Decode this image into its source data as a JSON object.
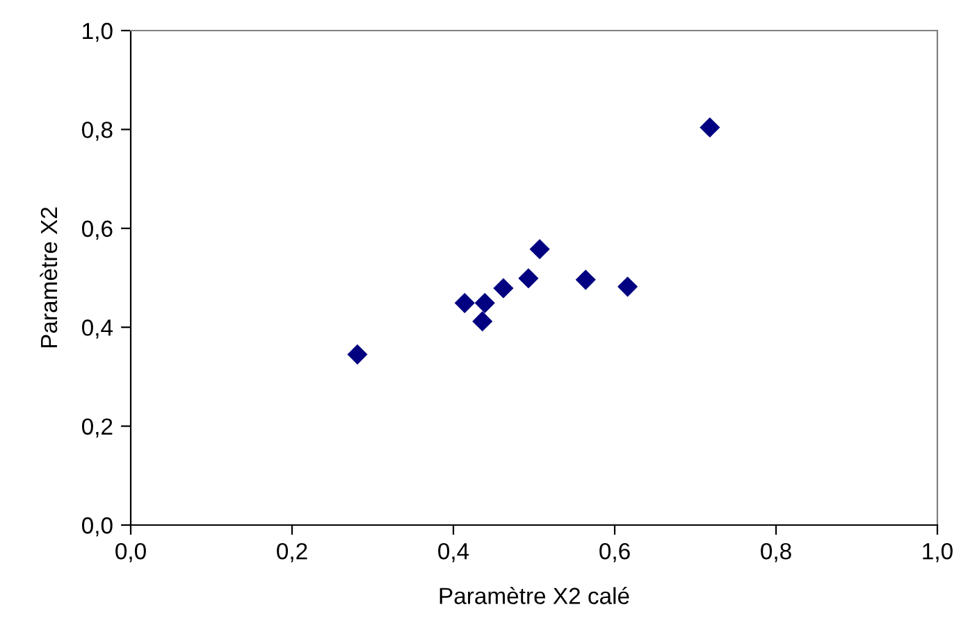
{
  "chart_data": {
    "type": "scatter",
    "xlabel": "Paramètre X2 calé",
    "ylabel": "Paramètre X2",
    "x": [
      0.281,
      0.414,
      0.439,
      0.436,
      0.462,
      0.493,
      0.507,
      0.564,
      0.616,
      0.718
    ],
    "values": [
      0.345,
      0.449,
      0.449,
      0.412,
      0.479,
      0.499,
      0.558,
      0.496,
      0.482,
      0.804
    ],
    "color": "#000080",
    "marker": "diamond",
    "xlim": [
      0,
      1
    ],
    "ylim": [
      0,
      1
    ],
    "xticks": [
      {
        "value": 0,
        "label": "0,0"
      },
      {
        "value": 0.2,
        "label": "0,2"
      },
      {
        "value": 0.4,
        "label": "0,4"
      },
      {
        "value": 0.6,
        "label": "0,6"
      },
      {
        "value": 0.8,
        "label": "0,8"
      },
      {
        "value": 1,
        "label": "1,0"
      }
    ],
    "yticks": [
      {
        "value": 0,
        "label": "0,0"
      },
      {
        "value": 0.2,
        "label": "0,2"
      },
      {
        "value": 0.4,
        "label": "0,4"
      },
      {
        "value": 0.6,
        "label": "0,6"
      },
      {
        "value": 0.8,
        "label": "0,8"
      },
      {
        "value": 1,
        "label": "1,0"
      }
    ],
    "grid": false,
    "legend": false
  }
}
